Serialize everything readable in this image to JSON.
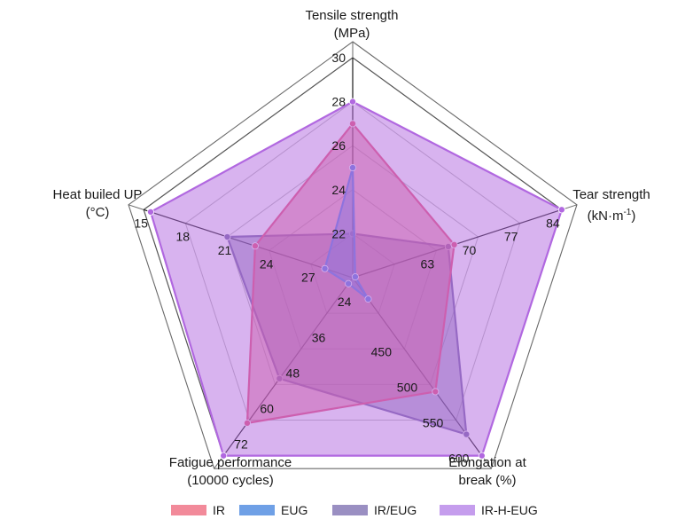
{
  "chart_data": {
    "type": "radar",
    "axes": [
      {
        "id": "tensile",
        "line1": "Tensile strength",
        "line2": "(MPa)",
        "ticks": [
          "20",
          "22",
          "24",
          "26",
          "28",
          "30"
        ],
        "min": 20,
        "max": 30
      },
      {
        "id": "tear",
        "line1": "Tear strength",
        "line2": "(kN·m",
        "line2_sup": "-1",
        "line2_end": ")",
        "ticks": [
          "56",
          "63",
          "70",
          "77",
          "84"
        ],
        "min": 49,
        "max": 84
      },
      {
        "id": "elongation",
        "line1": "Elongation at",
        "line2": "break (%)",
        "ticks": [
          "400",
          "450",
          "500",
          "550",
          "600"
        ],
        "min": 350,
        "max": 600
      },
      {
        "id": "fatigue",
        "line1": "Fatigue performance",
        "line2": "(10000 cycles)",
        "ticks": [
          "12",
          "24",
          "36",
          "48",
          "60",
          "72"
        ],
        "min": 12,
        "max": 72
      },
      {
        "id": "heat",
        "line1": "Heat builed UP",
        "line2": "(°C)",
        "ticks": [
          "30",
          "27",
          "24",
          "21",
          "18",
          "15"
        ],
        "min": 30,
        "max": 15,
        "reversed": true
      }
    ],
    "tick_labels_shown": {
      "tensile": [
        "22",
        "24",
        "26",
        "28",
        "30"
      ],
      "tear": [
        "63",
        "70",
        "77",
        "84"
      ],
      "elongation": [
        "450",
        "500",
        "550",
        "600"
      ],
      "fatigue": [
        "24",
        "36",
        "48",
        "60",
        "72"
      ],
      "heat": [
        "27",
        "24",
        "21",
        "18",
        "15"
      ]
    },
    "series": [
      {
        "name": "IR/EUG",
        "color": "#7b6aa8",
        "values": [
          22,
          65,
          570,
          46,
          21
        ]
      },
      {
        "name": "IR",
        "color": "#e8577e",
        "values": [
          27,
          66,
          510,
          61,
          23
        ]
      },
      {
        "name": "EUG",
        "color": "#6a7fdc",
        "values": [
          25,
          49,
          380,
          14,
          28
        ]
      },
      {
        "name": "IR-H-EUG",
        "color": "#b168e0",
        "values": [
          28,
          84,
          600,
          72,
          15.5
        ]
      }
    ],
    "legend": [
      {
        "name": "IR",
        "color": "#f28a9a"
      },
      {
        "name": "EUG",
        "color": "#6fa0e6"
      },
      {
        "name": "IR/EUG",
        "color": "#9a8fc2"
      },
      {
        "name": "IR-H-EUG",
        "color": "#c59ded"
      }
    ]
  }
}
